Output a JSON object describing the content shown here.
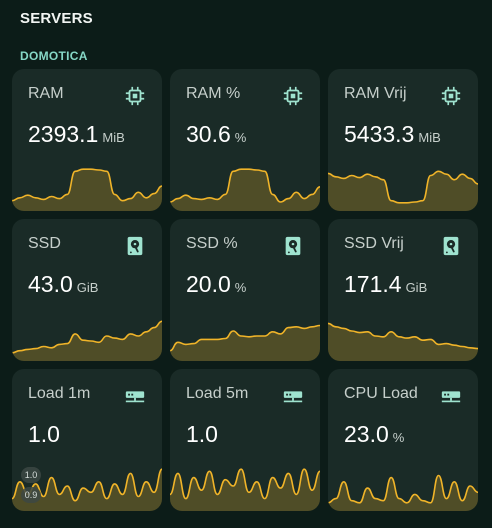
{
  "section": {
    "title": "SERVERS"
  },
  "subsection": {
    "title": "DOMOTICA"
  },
  "colors": {
    "accent": "#f0b429",
    "icon": "#9fe3cf",
    "card": "#1a2b27",
    "background": "#0c1c18"
  },
  "cards": [
    {
      "name": "RAM",
      "value": "2393.1",
      "unit": "MiB",
      "icon": "chip-icon",
      "trend": [
        0.15,
        0.22,
        0.28,
        0.22,
        0.18,
        0.25,
        0.2,
        0.3,
        0.85,
        0.9,
        0.9,
        0.88,
        0.85,
        0.3,
        0.15,
        0.2,
        0.35,
        0.22,
        0.32,
        0.5
      ]
    },
    {
      "name": "RAM %",
      "value": "30.6",
      "unit": "%",
      "icon": "chip-icon",
      "trend": [
        0.12,
        0.2,
        0.28,
        0.2,
        0.18,
        0.22,
        0.18,
        0.3,
        0.85,
        0.9,
        0.9,
        0.88,
        0.85,
        0.3,
        0.12,
        0.2,
        0.35,
        0.2,
        0.3,
        0.48
      ]
    },
    {
      "name": "RAM Vrij",
      "value": "5433.3",
      "unit": "MiB",
      "icon": "chip-icon",
      "trend": [
        0.8,
        0.72,
        0.68,
        0.75,
        0.7,
        0.78,
        0.72,
        0.65,
        0.15,
        0.1,
        0.1,
        0.12,
        0.15,
        0.75,
        0.85,
        0.78,
        0.65,
        0.78,
        0.68,
        0.55
      ]
    },
    {
      "name": "SSD",
      "value": "43.0",
      "unit": "GiB",
      "icon": "harddisk-icon",
      "trend": [
        0.1,
        0.15,
        0.18,
        0.2,
        0.25,
        0.22,
        0.3,
        0.32,
        0.55,
        0.4,
        0.38,
        0.35,
        0.5,
        0.45,
        0.42,
        0.55,
        0.5,
        0.6,
        0.7,
        0.85
      ]
    },
    {
      "name": "SSD %",
      "value": "20.0",
      "unit": "%",
      "icon": "harddisk-icon",
      "trend": [
        0.15,
        0.35,
        0.3,
        0.32,
        0.42,
        0.42,
        0.42,
        0.44,
        0.62,
        0.5,
        0.48,
        0.5,
        0.5,
        0.6,
        0.55,
        0.7,
        0.72,
        0.68,
        0.72,
        0.75
      ]
    },
    {
      "name": "SSD Vrij",
      "value": "171.4",
      "unit": "GiB",
      "icon": "harddisk-icon",
      "trend": [
        0.8,
        0.72,
        0.68,
        0.62,
        0.58,
        0.6,
        0.5,
        0.48,
        0.6,
        0.48,
        0.45,
        0.48,
        0.4,
        0.42,
        0.3,
        0.32,
        0.28,
        0.25,
        0.22,
        0.2
      ]
    },
    {
      "name": "Load 1m",
      "value": "1.0",
      "unit": "",
      "icon": "server-icon",
      "axis": {
        "top": "1.0",
        "bottom": "0.9"
      },
      "trend": [
        0.2,
        0.6,
        0.3,
        0.55,
        0.25,
        0.7,
        0.3,
        0.5,
        0.15,
        0.45,
        0.35,
        0.6,
        0.2,
        0.55,
        0.3,
        0.8,
        0.25,
        0.6,
        0.35,
        0.9
      ]
    },
    {
      "name": "Load 5m",
      "value": "1.0",
      "unit": "",
      "icon": "server-icon",
      "trend": [
        0.3,
        0.8,
        0.2,
        0.7,
        0.4,
        0.85,
        0.3,
        0.65,
        0.5,
        0.9,
        0.35,
        0.6,
        0.2,
        0.7,
        0.45,
        0.8,
        0.3,
        0.9,
        0.4,
        0.85
      ]
    },
    {
      "name": "CPU Load",
      "value": "23.0",
      "unit": "%",
      "icon": "server-icon",
      "trend": [
        0.1,
        0.2,
        0.6,
        0.15,
        0.1,
        0.45,
        0.2,
        0.15,
        0.7,
        0.2,
        0.1,
        0.3,
        0.15,
        0.1,
        0.75,
        0.2,
        0.6,
        0.15,
        0.5,
        0.35
      ]
    }
  ]
}
